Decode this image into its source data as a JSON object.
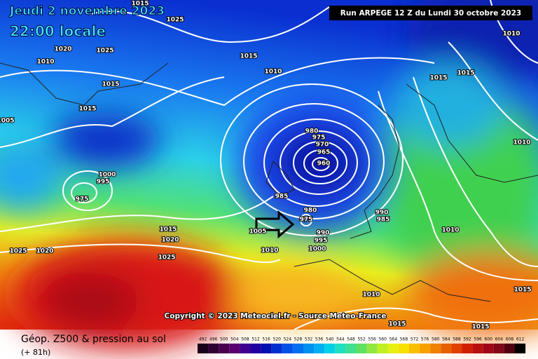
{
  "header": {
    "date": "Jeudi 2 novembre 2023",
    "time": "22:00 locale",
    "run": "Run ARPEGE 12 Z du Lundi 30 octobre 2023"
  },
  "copyright": "Copyright © 2023 Meteociel.fr - Source Meteo-France",
  "footer": {
    "title": "Géop. Z500 & pression au sol",
    "lead": "(+ 81h)"
  },
  "scale": [
    "492",
    "496",
    "500",
    "504",
    "508",
    "512",
    "516",
    "520",
    "524",
    "528",
    "532",
    "536",
    "540",
    "544",
    "548",
    "552",
    "556",
    "560",
    "564",
    "568",
    "572",
    "576",
    "580",
    "584",
    "588",
    "592",
    "596",
    "600",
    "604",
    "608",
    "612"
  ],
  "isobars": [
    "1015",
    "1025",
    "1020",
    "1025",
    "1010",
    "1015",
    "1010",
    "1015",
    "1015",
    "1005",
    "980",
    "975",
    "970",
    "965",
    "960",
    "1000",
    "995",
    "975",
    "985",
    "980",
    "975",
    "990",
    "995",
    "1000",
    "1005",
    "1015",
    "1020",
    "1025",
    "1025",
    "1020",
    "1010",
    "990",
    "985",
    "1010",
    "1010",
    "1015",
    "1015",
    "1015",
    "1010",
    "1010",
    "1015",
    "1015"
  ]
}
